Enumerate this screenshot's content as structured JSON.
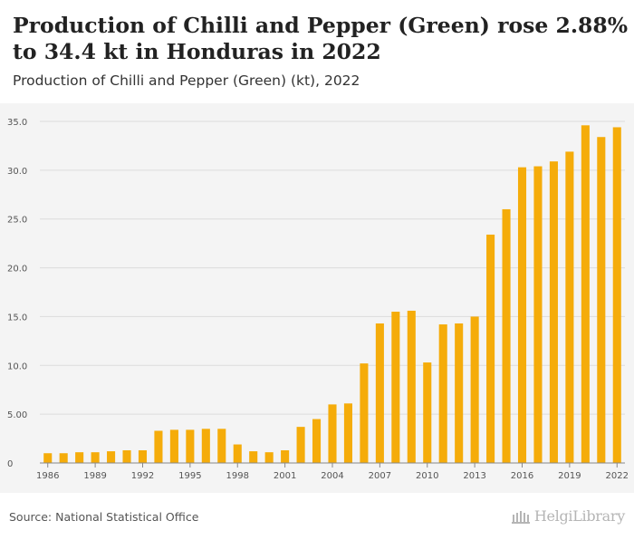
{
  "header": {
    "title": "Production of Chilli and Pepper (Green) rose 2.88% to 34.4 kt in Honduras in 2022",
    "subtitle": "Production of Chilli and Pepper (Green) (kt), 2022"
  },
  "footer": {
    "source": "Source: National Statistical Office",
    "logo_text": "HelgiLibrary"
  },
  "colors": {
    "bar": "#f5ac0a",
    "grid": "#dcdcdc",
    "axis": "#888888",
    "tick_text": "#555555"
  },
  "chart_data": {
    "type": "bar",
    "categories": [
      "1986",
      "1987",
      "1988",
      "1989",
      "1990",
      "1991",
      "1992",
      "1993",
      "1994",
      "1995",
      "1996",
      "1997",
      "1998",
      "1999",
      "2000",
      "2001",
      "2002",
      "2003",
      "2004",
      "2005",
      "2006",
      "2007",
      "2008",
      "2009",
      "2010",
      "2011",
      "2012",
      "2013",
      "2014",
      "2015",
      "2016",
      "2017",
      "2018",
      "2019",
      "2020",
      "2021",
      "2022"
    ],
    "x_tick_labels": [
      "1986",
      "1989",
      "1992",
      "1995",
      "1998",
      "2001",
      "2004",
      "2007",
      "2010",
      "2013",
      "2016",
      "2019",
      "2022"
    ],
    "values": [
      1.0,
      1.0,
      1.1,
      1.1,
      1.2,
      1.3,
      1.3,
      3.3,
      3.4,
      3.4,
      3.5,
      3.5,
      1.9,
      1.2,
      1.1,
      1.3,
      3.7,
      4.5,
      6.0,
      6.1,
      10.2,
      14.3,
      15.5,
      15.6,
      10.3,
      14.2,
      14.3,
      15.0,
      23.4,
      26.0,
      30.3,
      30.4,
      30.9,
      31.9,
      34.6,
      33.4,
      34.4
    ],
    "y_ticks": [
      "0",
      "5.00",
      "10.0",
      "15.0",
      "20.0",
      "25.0",
      "30.0",
      "35.0"
    ],
    "y_tick_values": [
      0,
      5,
      10,
      15,
      20,
      25,
      30,
      35
    ],
    "ylim": [
      0,
      35
    ],
    "grid": true
  }
}
